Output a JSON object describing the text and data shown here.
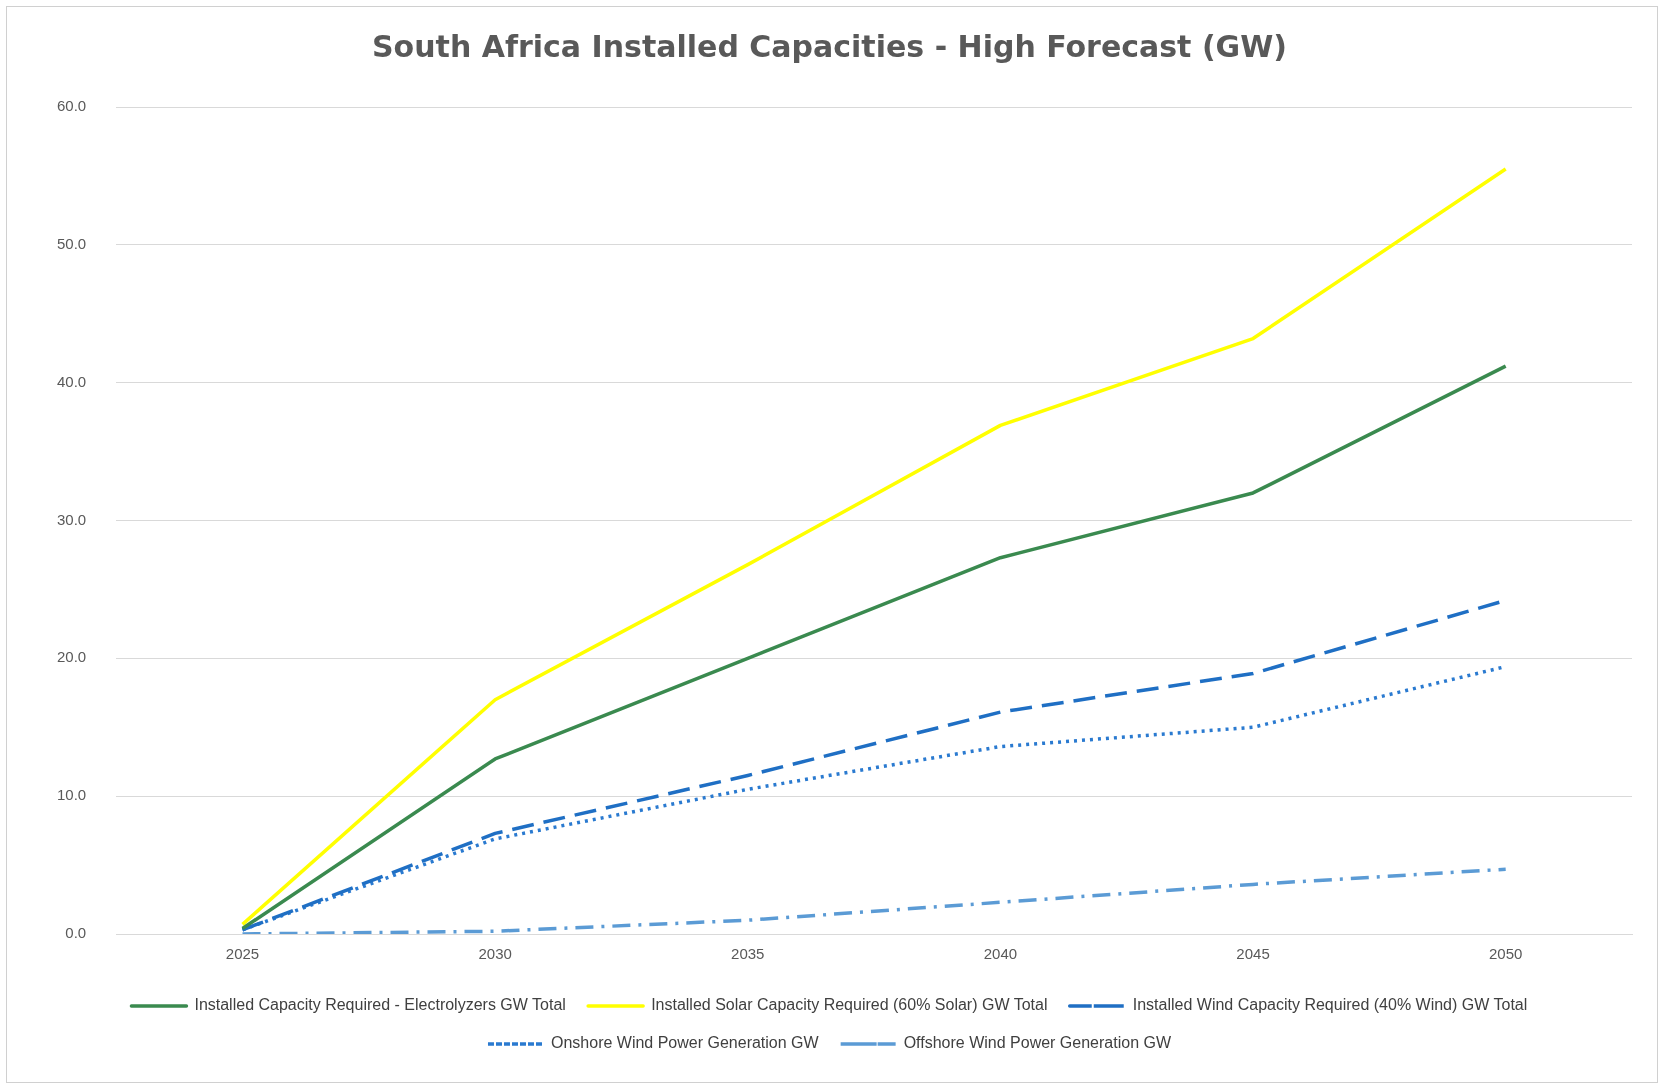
{
  "chart_data": {
    "type": "line",
    "title": "South Africa Installed Capacities - High Forecast (GW)",
    "categories": [
      "2025",
      "2030",
      "2035",
      "2040",
      "2045",
      "2050"
    ],
    "series": [
      {
        "name": "Installed Capacity Required - Electrolyzers GW Total",
        "color": "#3a8a4f",
        "line_style": "solid",
        "values": [
          0.4,
          12.7,
          20.0,
          27.3,
          32.0,
          41.2
        ]
      },
      {
        "name": "Installed Solar Capacity Required (60% Solar) GW Total",
        "color": "#ffff00",
        "line_style": "solid",
        "values": [
          0.7,
          17.0,
          26.8,
          36.9,
          43.2,
          55.5
        ]
      },
      {
        "name": "Installed Wind Capacity Required (40% Wind) GW Total",
        "color": "#1f6fc4",
        "line_style": "dashed",
        "values": [
          0.3,
          7.3,
          11.5,
          16.1,
          18.9,
          24.2
        ]
      },
      {
        "name": "Onshore Wind Power Generation GW",
        "color": "#2a7ad0",
        "line_style": "dotted",
        "values": [
          0.3,
          6.9,
          10.5,
          13.6,
          15.0,
          19.4
        ]
      },
      {
        "name": "Offshore Wind Power Generation GW",
        "color": "#5b9bd5",
        "line_style": "dashdot",
        "values": [
          0.0,
          0.2,
          1.0,
          2.3,
          3.6,
          4.7
        ]
      }
    ],
    "ylim": [
      0,
      60
    ],
    "yticks": [
      {
        "value": 0,
        "label": "0.0"
      },
      {
        "value": 10,
        "label": "10.0"
      },
      {
        "value": 20,
        "label": "20.0"
      },
      {
        "value": 30,
        "label": "30.0"
      },
      {
        "value": 40,
        "label": "40.0"
      },
      {
        "value": 50,
        "label": "50.0"
      },
      {
        "value": 60,
        "label": "60.0"
      }
    ],
    "grid": "y",
    "legend": "bottom",
    "marker": "none"
  }
}
